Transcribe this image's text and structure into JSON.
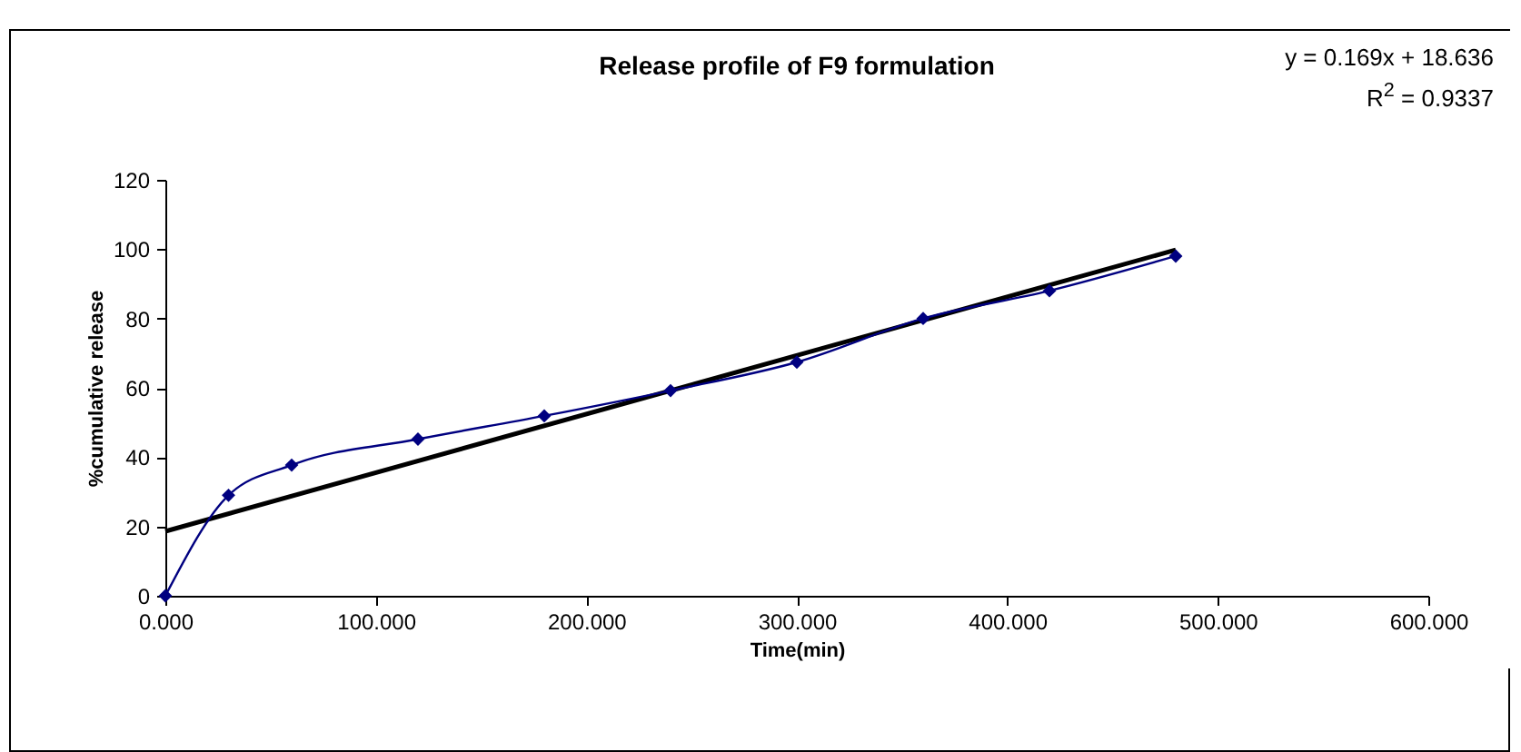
{
  "chart_data": {
    "type": "line",
    "title": "Release profile of F9 formulation",
    "xlabel": "Time(min)",
    "ylabel": "%cumulative release",
    "x": [
      0,
      30,
      60,
      120,
      180,
      240,
      300,
      360,
      420,
      480
    ],
    "series": [
      {
        "color": "#000080",
        "marker": "diamond",
        "values": [
          0,
          29,
          37.7,
          45.2,
          51.9,
          59.2,
          67.4,
          80,
          88,
          98
        ]
      },
      {
        "color": "#000000",
        "marker": "none",
        "x": [
          0,
          480
        ],
        "values": [
          18.6,
          99.8
        ]
      }
    ],
    "xlim": [
      0,
      600
    ],
    "ylim": [
      0,
      120
    ],
    "xticks": [
      {
        "value": 0,
        "label": "0.000"
      },
      {
        "value": 100,
        "label": "100.000"
      },
      {
        "value": 200,
        "label": "200.000"
      },
      {
        "value": 300,
        "label": "300.000"
      },
      {
        "value": 400,
        "label": "400.000"
      },
      {
        "value": 500,
        "label": "500.000"
      },
      {
        "value": 600,
        "label": "600.000"
      }
    ],
    "yticks": [
      0,
      20,
      40,
      60,
      80,
      100,
      120
    ],
    "grid": false,
    "annotations": [
      "y = 0.169x + 18.636",
      "R$^{2}$ = 0.9337"
    ]
  }
}
